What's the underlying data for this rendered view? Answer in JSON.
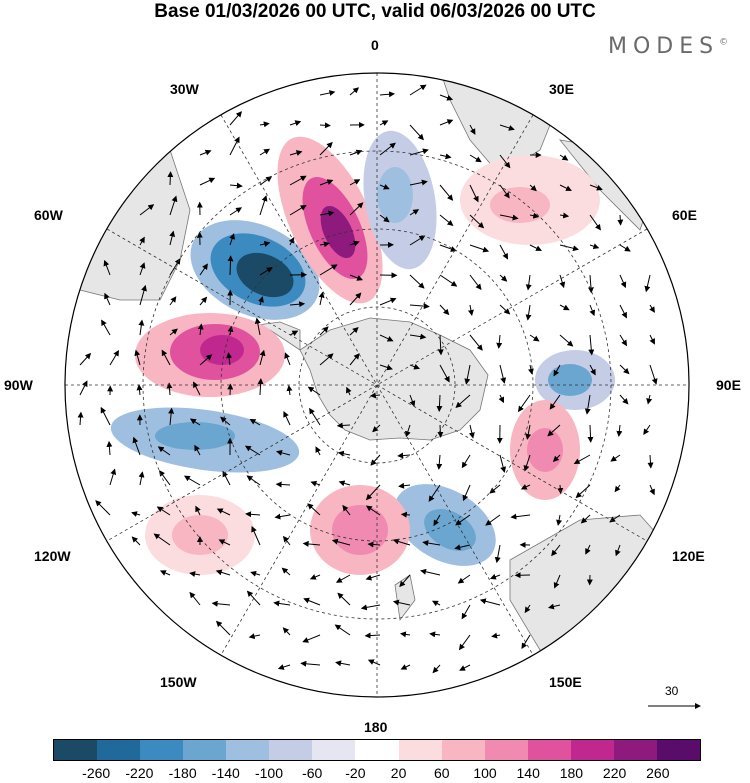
{
  "title": "Base 01/03/2026 00 UTC, valid 06/03/2026 00 UTC",
  "brand": "MODES",
  "brand_mark": "©",
  "longitude_labels": {
    "n": "0",
    "n30e": "30E",
    "n60e": "60E",
    "e": "90E",
    "s120e": "120E",
    "s150e": "150E",
    "s": "180",
    "s150w": "150W",
    "s120w": "120W",
    "w": "90W",
    "n60w": "60W",
    "n30w": "30W"
  },
  "reference_vector": "30",
  "colorbar": {
    "labels": [
      "-260",
      "-220",
      "-180",
      "-140",
      "-100",
      "-60",
      "-20",
      "20",
      "60",
      "100",
      "140",
      "180",
      "220",
      "260"
    ],
    "colors": [
      "#1b4a66",
      "#1f6a9a",
      "#3b8ac0",
      "#6aa6d0",
      "#9fbfe0",
      "#c5cde6",
      "#e6e6f2",
      "#ffffff",
      "#fbdde0",
      "#f7b6c2",
      "#f08ab0",
      "#e0529e",
      "#c0288f",
      "#8e1a7e",
      "#5a0c6a"
    ]
  },
  "map_colors": {
    "land": "#e6e6e6",
    "coast": "#777777",
    "grid": "#333333"
  }
}
